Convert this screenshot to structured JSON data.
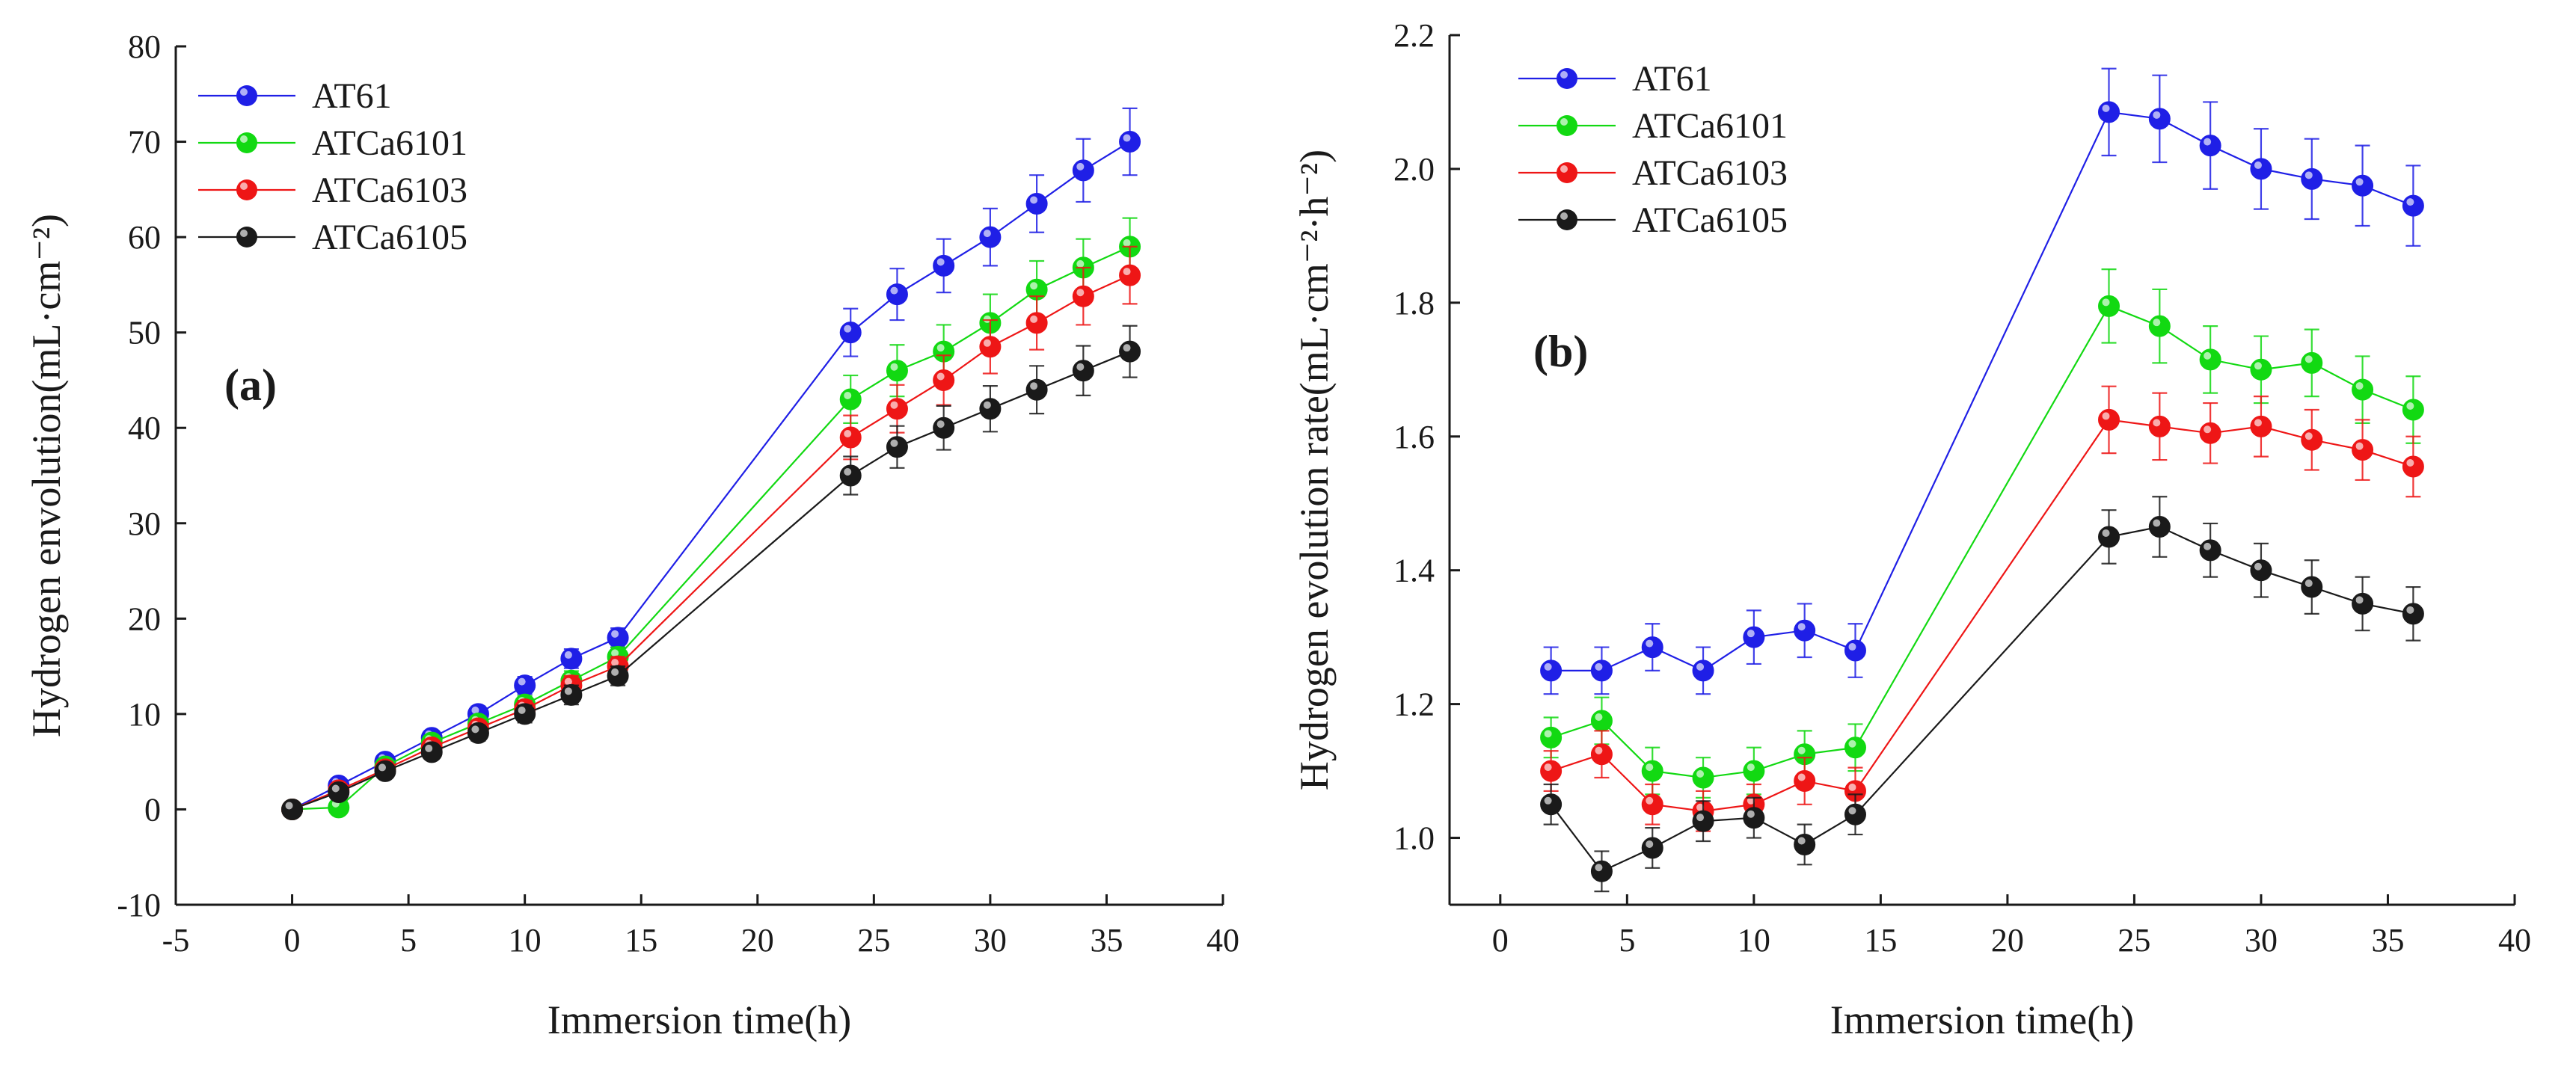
{
  "chart_data": [
    {
      "type": "line",
      "panel_label": "(a)",
      "xlabel": "Immersion time(h)",
      "ylabel": "Hydrogen envolution(mL·cm⁻²)",
      "xlim": [
        -5,
        40
      ],
      "ylim": [
        -10,
        80
      ],
      "xticks": [
        -5,
        0,
        5,
        10,
        15,
        20,
        25,
        30,
        35,
        40
      ],
      "yticks": [
        -10,
        0,
        10,
        20,
        30,
        40,
        50,
        60,
        70,
        80
      ],
      "x_tick_labels": [
        "-5",
        "0",
        "5",
        "10",
        "15",
        "20",
        "25",
        "30",
        "35",
        "40"
      ],
      "y_tick_labels": [
        "-10",
        "0",
        "10",
        "20",
        "30",
        "40",
        "50",
        "60",
        "70",
        "80"
      ],
      "legend_position": "top-left",
      "series": [
        {
          "name": "AT61",
          "color": "#1f1fe6",
          "x": [
            0,
            2,
            4,
            6,
            8,
            10,
            12,
            14,
            24,
            26,
            28,
            30,
            32,
            34,
            36
          ],
          "y": [
            0,
            2.5,
            5,
            7.5,
            10,
            13,
            15.8,
            18,
            50,
            54,
            57,
            60,
            63.5,
            67,
            70
          ],
          "err": [
            0,
            0.5,
            0.6,
            0.7,
            0.8,
            0.9,
            1.0,
            1.0,
            2.5,
            2.7,
            2.8,
            3.0,
            3.0,
            3.3,
            3.5
          ]
        },
        {
          "name": "ATCa6101",
          "color": "#12d912",
          "x": [
            0,
            2,
            4,
            6,
            8,
            10,
            12,
            14,
            24,
            26,
            28,
            30,
            32,
            34,
            36
          ],
          "y": [
            0,
            0.2,
            4.5,
            7,
            9,
            11,
            13.5,
            16,
            43,
            46,
            48,
            51,
            54.5,
            56.8,
            59
          ],
          "err": [
            0,
            0.5,
            0.6,
            0.7,
            0.8,
            0.9,
            1.0,
            1.0,
            2.5,
            2.7,
            2.8,
            3.0,
            3.0,
            3.0,
            3.0
          ]
        },
        {
          "name": "ATCa6103",
          "color": "#ee1616",
          "x": [
            0,
            2,
            4,
            6,
            8,
            10,
            12,
            14,
            24,
            26,
            28,
            30,
            32,
            34,
            36
          ],
          "y": [
            0,
            2,
            4.2,
            6.5,
            8.5,
            10.5,
            13,
            15,
            39,
            42,
            45,
            48.5,
            51,
            53.8,
            56
          ],
          "err": [
            0,
            0.5,
            0.6,
            0.7,
            0.8,
            0.9,
            1.0,
            1.0,
            2.3,
            2.5,
            2.6,
            2.8,
            2.8,
            3.0,
            3.0
          ]
        },
        {
          "name": "ATCa6105",
          "color": "#1a1a1a",
          "x": [
            0,
            2,
            4,
            6,
            8,
            10,
            12,
            14,
            24,
            26,
            28,
            30,
            32,
            34,
            36
          ],
          "y": [
            0,
            1.8,
            4,
            6,
            8,
            10,
            12,
            14,
            35,
            38,
            40,
            42,
            44,
            46,
            48
          ],
          "err": [
            0,
            0.5,
            0.6,
            0.7,
            0.8,
            0.9,
            1.0,
            1.0,
            2.0,
            2.2,
            2.3,
            2.4,
            2.5,
            2.6,
            2.7
          ]
        }
      ]
    },
    {
      "type": "line",
      "panel_label": "(b)",
      "xlabel": "Immersion time(h)",
      "ylabel": "Hydrogen evolution rate(mL·cm⁻²·h⁻²)",
      "xlim": [
        -2,
        40
      ],
      "ylim": [
        0.9,
        2.2
      ],
      "xticks": [
        0,
        5,
        10,
        15,
        20,
        25,
        30,
        35,
        40
      ],
      "yticks": [
        1.0,
        1.2,
        1.4,
        1.6,
        1.8,
        2.0,
        2.2
      ],
      "x_tick_labels": [
        "0",
        "5",
        "10",
        "15",
        "20",
        "25",
        "30",
        "35",
        "40"
      ],
      "y_tick_labels": [
        "1.0",
        "1.2",
        "1.4",
        "1.6",
        "1.8",
        "2.0",
        "2.2"
      ],
      "legend_position": "top-left",
      "series": [
        {
          "name": "AT61",
          "color": "#1f1fe6",
          "x": [
            2,
            4,
            6,
            8,
            10,
            12,
            14,
            24,
            26,
            28,
            30,
            32,
            34,
            36
          ],
          "y": [
            1.25,
            1.25,
            1.285,
            1.25,
            1.3,
            1.31,
            1.28,
            2.085,
            2.075,
            2.035,
            2.0,
            1.985,
            1.975,
            1.945
          ],
          "err": [
            0.035,
            0.035,
            0.035,
            0.035,
            0.04,
            0.04,
            0.04,
            0.065,
            0.065,
            0.065,
            0.06,
            0.06,
            0.06,
            0.06
          ]
        },
        {
          "name": "ATCa6101",
          "color": "#12d912",
          "x": [
            2,
            4,
            6,
            8,
            10,
            12,
            14,
            24,
            26,
            28,
            30,
            32,
            34,
            36
          ],
          "y": [
            1.15,
            1.175,
            1.1,
            1.09,
            1.1,
            1.125,
            1.135,
            1.795,
            1.765,
            1.715,
            1.7,
            1.71,
            1.67,
            1.64
          ],
          "err": [
            0.03,
            0.035,
            0.035,
            0.03,
            0.035,
            0.035,
            0.035,
            0.055,
            0.055,
            0.05,
            0.05,
            0.05,
            0.05,
            0.05
          ]
        },
        {
          "name": "ATCa6103",
          "color": "#ee1616",
          "x": [
            2,
            4,
            6,
            8,
            10,
            12,
            14,
            24,
            26,
            28,
            30,
            32,
            34,
            36
          ],
          "y": [
            1.1,
            1.125,
            1.05,
            1.04,
            1.05,
            1.085,
            1.07,
            1.625,
            1.615,
            1.605,
            1.615,
            1.595,
            1.58,
            1.555
          ],
          "err": [
            0.03,
            0.035,
            0.03,
            0.03,
            0.03,
            0.035,
            0.035,
            0.05,
            0.05,
            0.045,
            0.045,
            0.045,
            0.045,
            0.045
          ]
        },
        {
          "name": "ATCa6105",
          "color": "#1a1a1a",
          "x": [
            2,
            4,
            6,
            8,
            10,
            12,
            14,
            24,
            26,
            28,
            30,
            32,
            34,
            36
          ],
          "y": [
            1.05,
            0.95,
            0.985,
            1.025,
            1.03,
            0.99,
            1.035,
            1.45,
            1.465,
            1.43,
            1.4,
            1.375,
            1.35,
            1.335
          ],
          "err": [
            0.03,
            0.03,
            0.03,
            0.03,
            0.03,
            0.03,
            0.03,
            0.04,
            0.045,
            0.04,
            0.04,
            0.04,
            0.04,
            0.04
          ]
        }
      ]
    }
  ]
}
